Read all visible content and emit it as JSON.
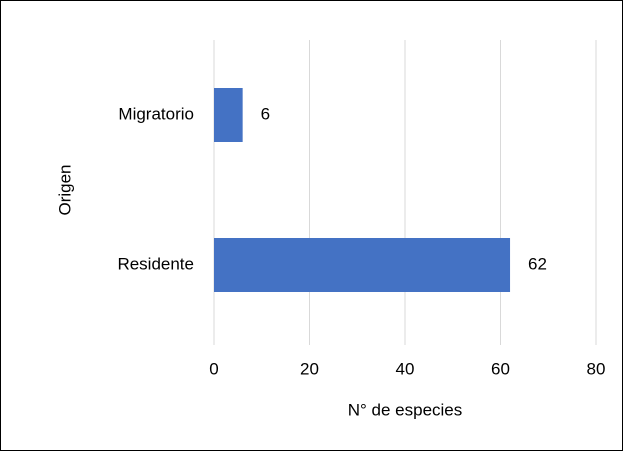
{
  "chart_data": {
    "type": "bar",
    "orientation": "horizontal",
    "categories": [
      "Migratorio",
      "Residente"
    ],
    "values": [
      6,
      62
    ],
    "color": "#4472c4",
    "xlabel": "N° de especies",
    "ylabel": "Origen",
    "xlim": [
      0,
      80
    ],
    "xticks": [
      0,
      20,
      40,
      60,
      80
    ],
    "grid": true
  }
}
